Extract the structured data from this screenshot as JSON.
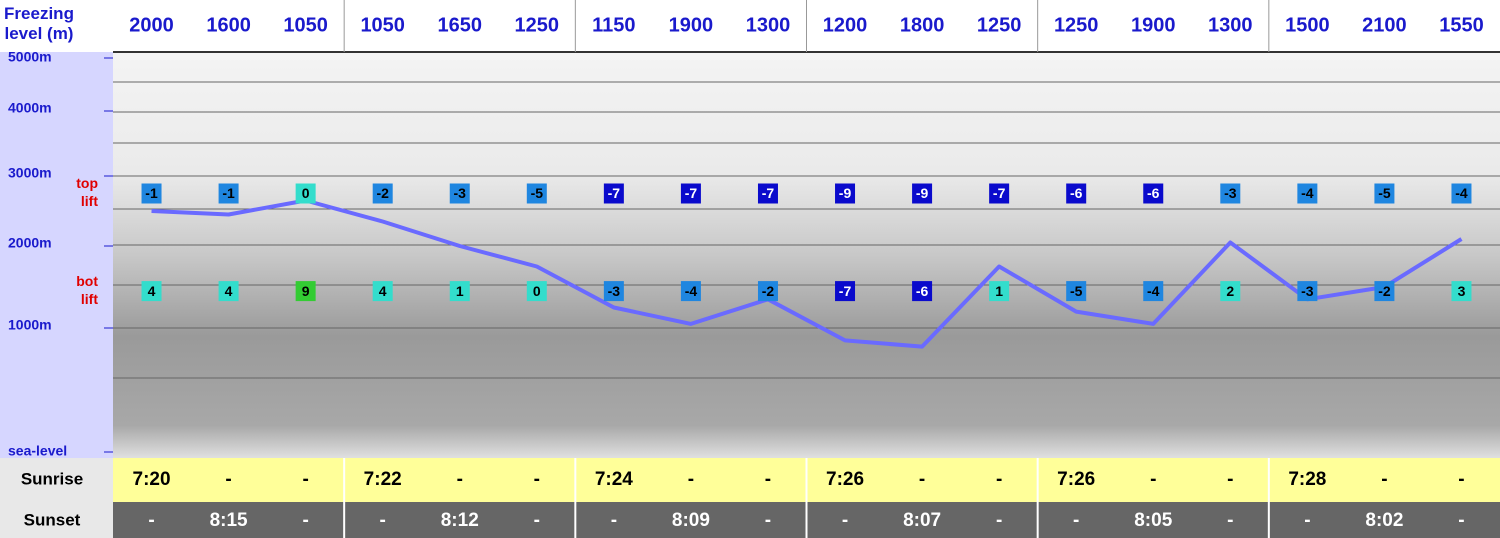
{
  "chart_data": {
    "type": "line",
    "y_label": "Freezing level (m)",
    "ylim": [
      0,
      5000
    ],
    "yticks": [
      {
        "value": 5000,
        "label": "5000m"
      },
      {
        "value": 4000,
        "label": "4000m"
      },
      {
        "value": 3000,
        "label": "3000m"
      },
      {
        "value": 2000,
        "label": "2000m"
      },
      {
        "value": 1000,
        "label": "1000m"
      },
      {
        "value": 0,
        "label": "sea-level"
      }
    ],
    "freezing_levels": [
      2000,
      1600,
      1050,
      1050,
      1650,
      1250,
      1150,
      1900,
      1300,
      1200,
      1800,
      1250,
      1250,
      1900,
      1300,
      1500,
      2100,
      1550
    ],
    "values": [
      2500,
      2450,
      2650,
      2350,
      2000,
      1750,
      1250,
      1050,
      1350,
      900,
      850,
      1750,
      1200,
      1050,
      2050,
      1350,
      1500,
      2100
    ],
    "color": "#6a6aff",
    "top_lift": {
      "label": [
        "top",
        "lift"
      ],
      "value": 2750,
      "temperatures": [
        -1,
        -1,
        0,
        -2,
        -3,
        -5,
        -7,
        -7,
        -7,
        -9,
        -9,
        -7,
        -6,
        -6,
        -3,
        -4,
        -5,
        -4
      ]
    },
    "bot_lift": {
      "label": [
        "bot",
        "lift"
      ],
      "value": 1450,
      "temperatures": [
        4,
        4,
        9,
        4,
        1,
        0,
        -3,
        -4,
        -2,
        -7,
        -6,
        1,
        -5,
        -4,
        2,
        -3,
        -2,
        3
      ]
    },
    "sunrise": {
      "label": "Sunrise",
      "values": [
        "7:20",
        "-",
        "-",
        "7:22",
        "-",
        "-",
        "7:24",
        "-",
        "-",
        "7:26",
        "-",
        "-",
        "7:26",
        "-",
        "-",
        "7:28",
        "-",
        "-"
      ]
    },
    "sunset": {
      "label": "Sunset",
      "values": [
        "-",
        "8:15",
        "-",
        "-",
        "8:12",
        "-",
        "-",
        "8:09",
        "-",
        "-",
        "8:07",
        "-",
        "-",
        "8:05",
        "-",
        "-",
        "8:02",
        "-"
      ]
    }
  }
}
